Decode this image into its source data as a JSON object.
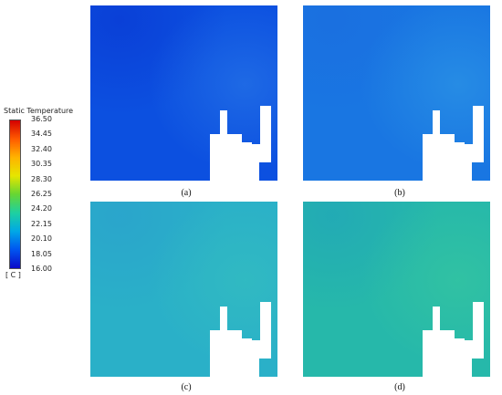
{
  "legend": {
    "title": "Static Temperature",
    "unit": "[ C ]",
    "ticks": [
      "36.50",
      "34.45",
      "32.40",
      "30.35",
      "28.30",
      "26.25",
      "24.20",
      "22.15",
      "20.10",
      "18.05",
      "16.00"
    ],
    "colors": [
      "#d40000",
      "#ff5a00",
      "#ffb300",
      "#e6e600",
      "#66d633",
      "#1ed0a0",
      "#00a8e6",
      "#0055f0",
      "#0a0ac8"
    ]
  },
  "panels": [
    {
      "id": "a",
      "caption": "(a)",
      "base": "#0c50e0",
      "shade": "#0a3ed6",
      "hint": "#2a7ae8"
    },
    {
      "id": "b",
      "caption": "(b)",
      "base": "#1976e2",
      "shade": "#1a6fe0",
      "hint": "#2f9ae6"
    },
    {
      "id": "c",
      "caption": "(c)",
      "base": "#2ab0c8",
      "shade": "#2aa4cc",
      "hint": "#35c0be"
    },
    {
      "id": "d",
      "caption": "(d)",
      "base": "#26b8aa",
      "shade": "#22a9b6",
      "hint": "#38c89e"
    }
  ]
}
